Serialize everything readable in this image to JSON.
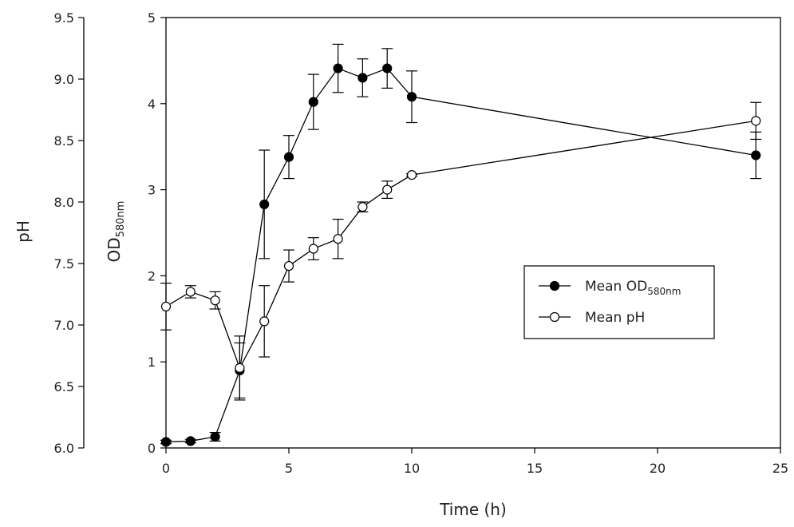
{
  "chart_data": {
    "type": "line",
    "xlabel": "Time (h)",
    "ylabel_left_outer": "pH",
    "ylabel_left_inner": {
      "main": "OD",
      "subscript": "580nm"
    },
    "x_range": [
      0,
      25
    ],
    "x_ticks": [
      "0",
      "5",
      "10",
      "15",
      "20",
      "25"
    ],
    "od_range": [
      0,
      5
    ],
    "od_ticks": [
      "0",
      "1",
      "2",
      "3",
      "4",
      "5"
    ],
    "ph_range": [
      6.0,
      9.5
    ],
    "ph_ticks": [
      "6.0",
      "6.5",
      "7.0",
      "7.5",
      "8.0",
      "8.5",
      "9.0",
      "9.5"
    ],
    "grid": false,
    "legend_position": "middle-right",
    "series": [
      {
        "name": "Mean OD",
        "name_subscript": "580nm",
        "axis": "od",
        "marker": "filled-circle",
        "color": "#000000",
        "x": [
          0,
          1,
          2,
          3,
          4,
          5,
          6,
          7,
          8,
          9,
          10,
          24
        ],
        "y": [
          0.07,
          0.08,
          0.13,
          0.9,
          2.83,
          3.38,
          4.02,
          4.41,
          4.3,
          4.41,
          4.08,
          3.4
        ],
        "error": [
          0.02,
          0.02,
          0.05,
          0.32,
          0.63,
          0.25,
          0.32,
          0.28,
          0.22,
          0.23,
          0.3,
          0.27
        ]
      },
      {
        "name": "Mean pH",
        "name_subscript": "",
        "axis": "ph",
        "marker": "open-circle",
        "color": "#000000",
        "x": [
          0,
          1,
          2,
          3,
          4,
          5,
          6,
          7,
          8,
          9,
          10,
          24
        ],
        "y": [
          7.15,
          7.27,
          7.2,
          6.65,
          7.03,
          7.48,
          7.62,
          7.7,
          7.96,
          8.1,
          8.22,
          8.66
        ],
        "error": [
          0.19,
          0.05,
          0.07,
          0.26,
          0.29,
          0.13,
          0.09,
          0.16,
          0.04,
          0.07,
          0.01,
          0.15
        ]
      }
    ]
  }
}
